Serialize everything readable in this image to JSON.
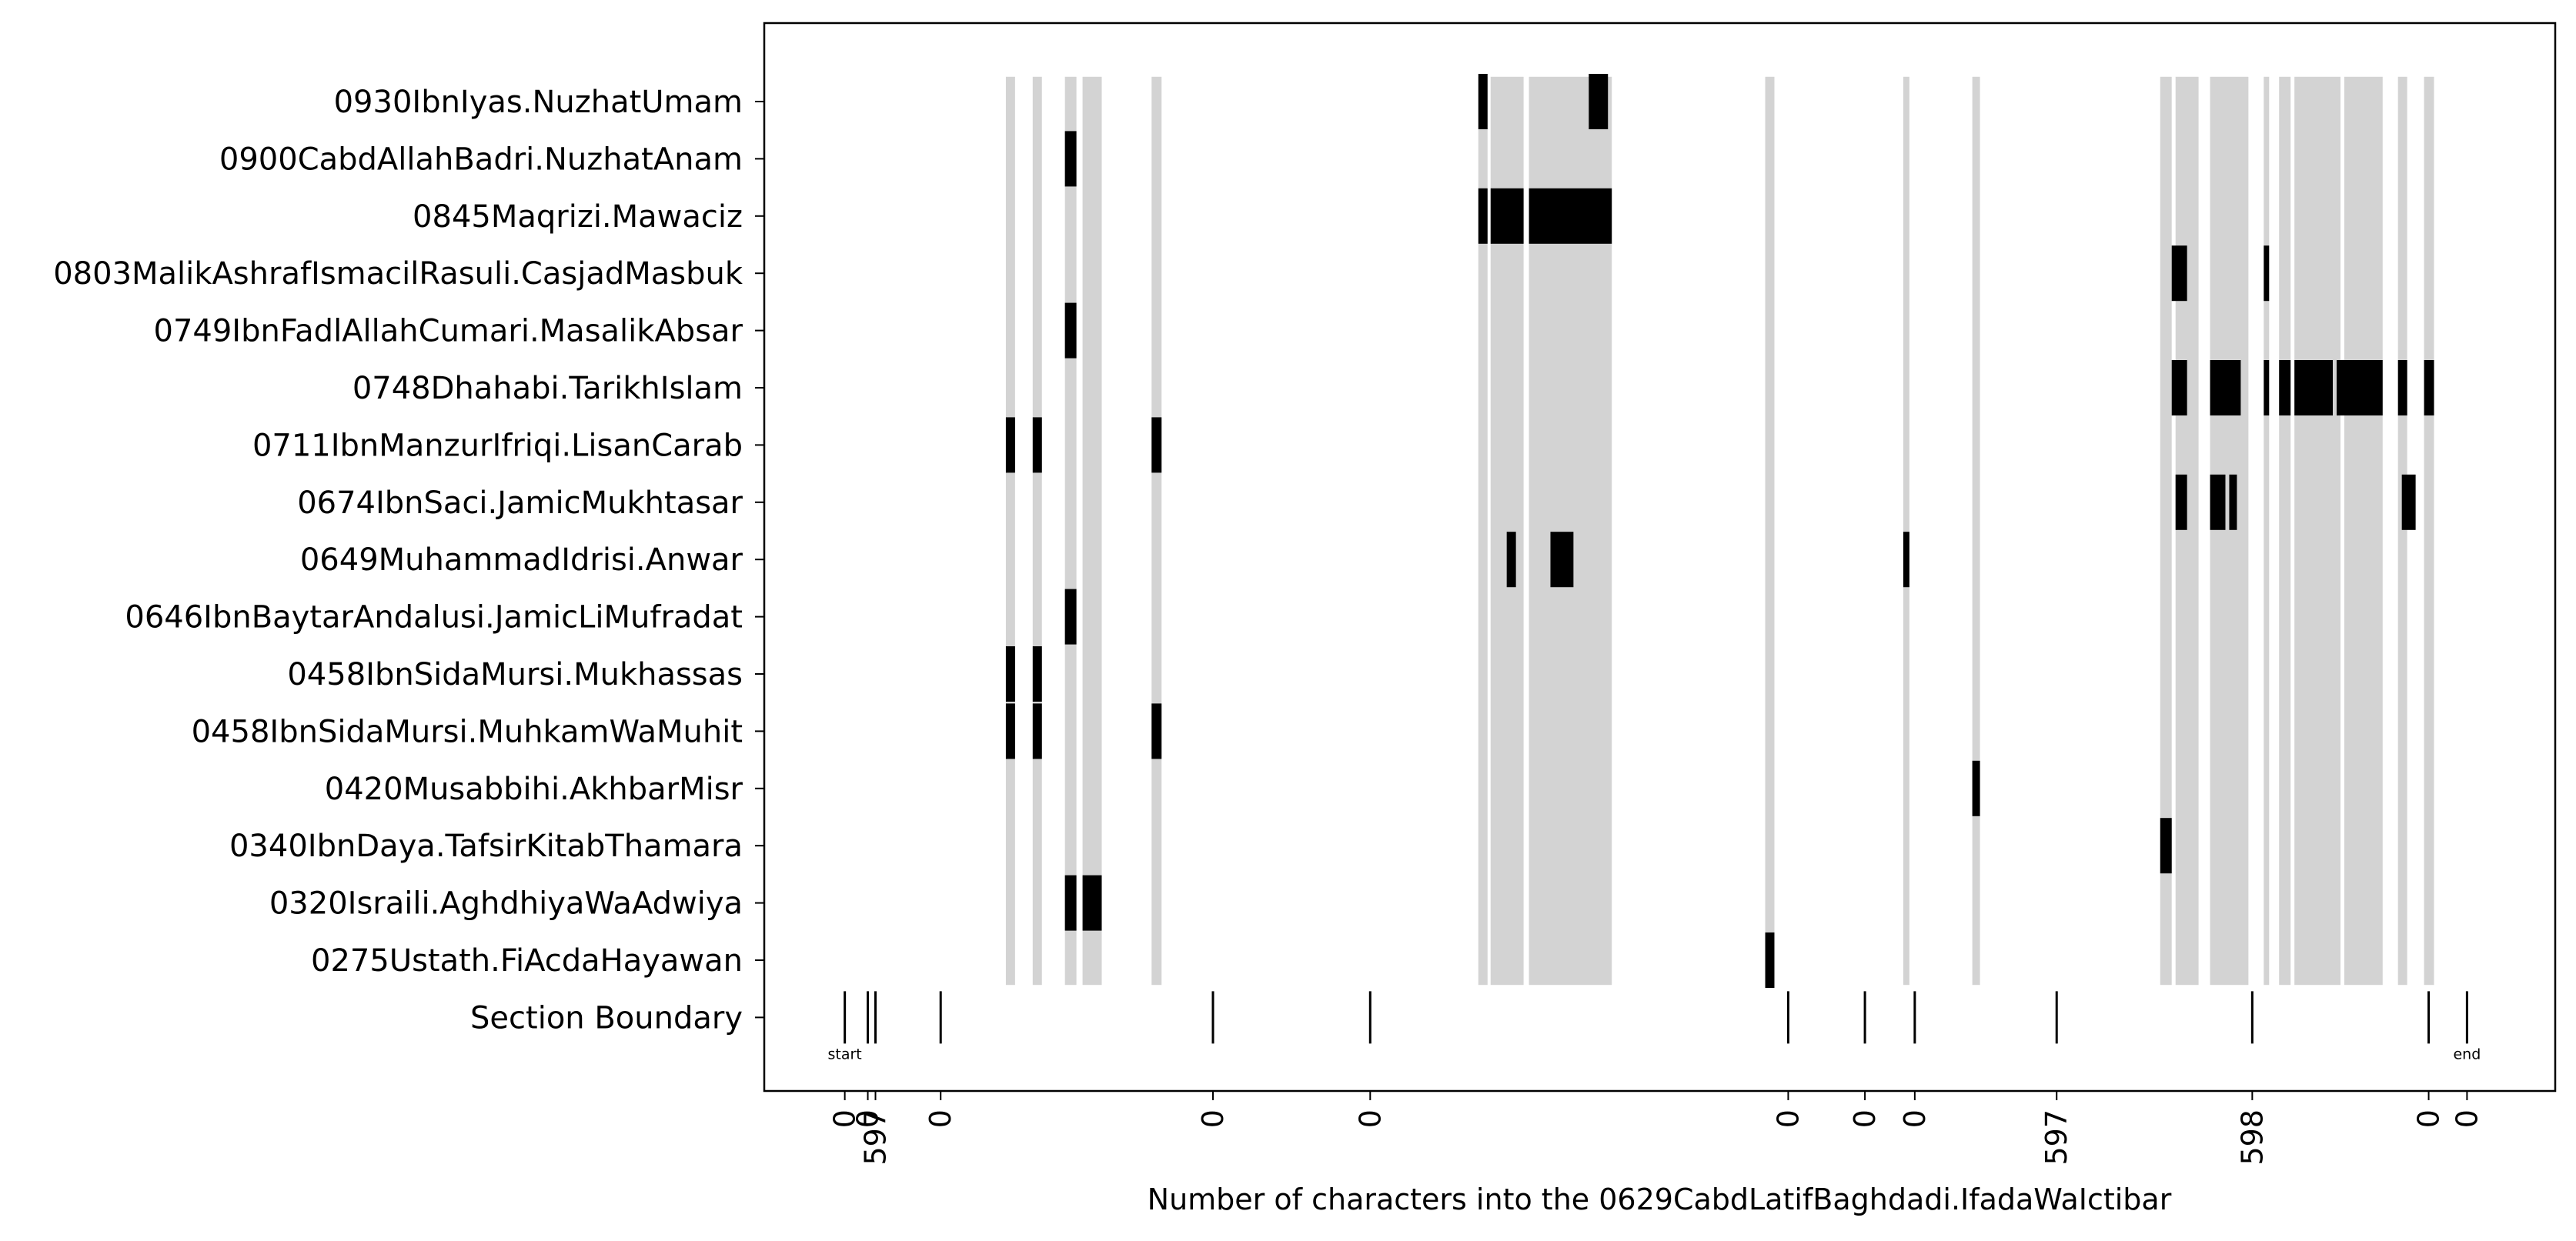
{
  "chart_data": {
    "type": "heatmap",
    "xlabel": "Number of characters into the 0629CabdLatifBaghdadi.IfadaWaIctibar",
    "xlim": [
      -1050,
      22300
    ],
    "rows": [
      "0930IbnIyas.NuzhatUmam",
      "0900CabdAllahBadri.NuzhatAnam",
      "0845Maqrizi.Mawaciz",
      "0803MalikAshrafIsmacilRasuli.CasjadMasbuk",
      "0749IbnFadlAllahCumari.MasalikAbsar",
      "0748Dhahabi.TarikhIslam",
      "0711IbnManzurIfriqi.LisanCarab",
      "0674IbnSaci.JamicMukhtasar",
      "0649MuhammadIdrisi.Anwar",
      "0646IbnBaytarAndalusi.JamicLiMufradat",
      "0458IbnSidaMursi.Mukhassas",
      "0458IbnSidaMursi.MuhkamWaMuhit",
      "0420Musabbihi.AkhbarMisr",
      "0340IbnDaya.TafsirKitabThamara",
      "0320Israili.AghdhiyaWaAdwiya",
      "0275Ustath.FiAcdaHayawan"
    ],
    "boundary_row_label": "Section Boundary",
    "grey_spans": [
      [
        2100,
        2220
      ],
      [
        2450,
        2570
      ],
      [
        2870,
        3020
      ],
      [
        3100,
        3350
      ],
      [
        4000,
        4130
      ],
      [
        8260,
        8380
      ],
      [
        8420,
        8850
      ],
      [
        8920,
        10000
      ],
      [
        12000,
        12120
      ],
      [
        13800,
        13880
      ],
      [
        14700,
        14800
      ],
      [
        17150,
        17300
      ],
      [
        17350,
        17650
      ],
      [
        17800,
        18300
      ],
      [
        18500,
        18570
      ],
      [
        18700,
        18850
      ],
      [
        18900,
        19500
      ],
      [
        19550,
        20050
      ],
      [
        20250,
        20370
      ],
      [
        20590,
        20720
      ]
    ],
    "matches": [
      {
        "row": "0930IbnIyas.NuzhatUmam",
        "spans": [
          [
            8260,
            8380
          ],
          [
            9700,
            9950
          ]
        ]
      },
      {
        "row": "0900CabdAllahBadri.NuzhatAnam",
        "spans": [
          [
            2870,
            3020
          ]
        ]
      },
      {
        "row": "0845Maqrizi.Mawaciz",
        "spans": [
          [
            8260,
            8380
          ],
          [
            8420,
            8850
          ],
          [
            8920,
            10000
          ]
        ]
      },
      {
        "row": "0803MalikAshrafIsmacilRasuli.CasjadMasbuk",
        "spans": [
          [
            17300,
            17500
          ],
          [
            18500,
            18570
          ]
        ]
      },
      {
        "row": "0749IbnFadlAllahCumari.MasalikAbsar",
        "spans": [
          [
            2870,
            3020
          ]
        ]
      },
      {
        "row": "0748Dhahabi.TarikhIslam",
        "spans": [
          [
            17300,
            17500
          ],
          [
            17800,
            18200
          ],
          [
            18500,
            18570
          ],
          [
            18700,
            18850
          ],
          [
            18900,
            19400
          ],
          [
            19450,
            20050
          ],
          [
            20250,
            20370
          ],
          [
            20590,
            20720
          ]
        ]
      },
      {
        "row": "0711IbnManzurIfriqi.LisanCarab",
        "spans": [
          [
            2100,
            2220
          ],
          [
            2450,
            2570
          ],
          [
            4000,
            4130
          ]
        ]
      },
      {
        "row": "0674IbnSaci.JamicMukhtasar",
        "spans": [
          [
            17350,
            17500
          ],
          [
            17800,
            18000
          ],
          [
            18050,
            18150
          ],
          [
            20300,
            20480
          ]
        ]
      },
      {
        "row": "0649MuhammadIdrisi.Anwar",
        "spans": [
          [
            8630,
            8750
          ],
          [
            9200,
            9500
          ],
          [
            13800,
            13880
          ]
        ]
      },
      {
        "row": "0646IbnBaytarAndalusi.JamicLiMufradat",
        "spans": [
          [
            2870,
            3020
          ]
        ]
      },
      {
        "row": "0458IbnSidaMursi.Mukhassas",
        "spans": [
          [
            2100,
            2220
          ],
          [
            2450,
            2570
          ]
        ]
      },
      {
        "row": "0458IbnSidaMursi.MuhkamWaMuhit",
        "spans": [
          [
            2100,
            2220
          ],
          [
            2450,
            2570
          ],
          [
            4000,
            4130
          ]
        ]
      },
      {
        "row": "0420Musabbihi.AkhbarMisr",
        "spans": [
          [
            14700,
            14800
          ]
        ]
      },
      {
        "row": "0340IbnDaya.TafsirKitabThamara",
        "spans": [
          [
            17150,
            17300
          ]
        ]
      },
      {
        "row": "0320Israili.AghdhiyaWaAdwiya",
        "spans": [
          [
            2870,
            3020
          ],
          [
            3100,
            3350
          ]
        ]
      },
      {
        "row": "0275Ustath.FiAcdaHayawan",
        "spans": [
          [
            12000,
            12120
          ]
        ]
      }
    ],
    "boundaries": [
      0,
      300,
      400,
      1250,
      4800,
      6850,
      12300,
      13300,
      13950,
      15800,
      18350,
      20650,
      21150
    ],
    "boundary_start_label": "start",
    "boundary_end_label": "end",
    "tick_labels": [
      {
        "x": 0,
        "label": "0"
      },
      {
        "x": 300,
        "label": "0"
      },
      {
        "x": 400,
        "label": "597"
      },
      {
        "x": 1250,
        "label": "0"
      },
      {
        "x": 4800,
        "label": "0"
      },
      {
        "x": 6850,
        "label": "0"
      },
      {
        "x": 12300,
        "label": "0"
      },
      {
        "x": 13300,
        "label": "0"
      },
      {
        "x": 13950,
        "label": "0"
      },
      {
        "x": 15800,
        "label": "597"
      },
      {
        "x": 18350,
        "label": "598"
      },
      {
        "x": 20650,
        "label": "0"
      },
      {
        "x": 21150,
        "label": "0"
      }
    ],
    "colors": {
      "match": "#000000",
      "shading": "#d3d3d3",
      "axes": "#000000"
    }
  }
}
